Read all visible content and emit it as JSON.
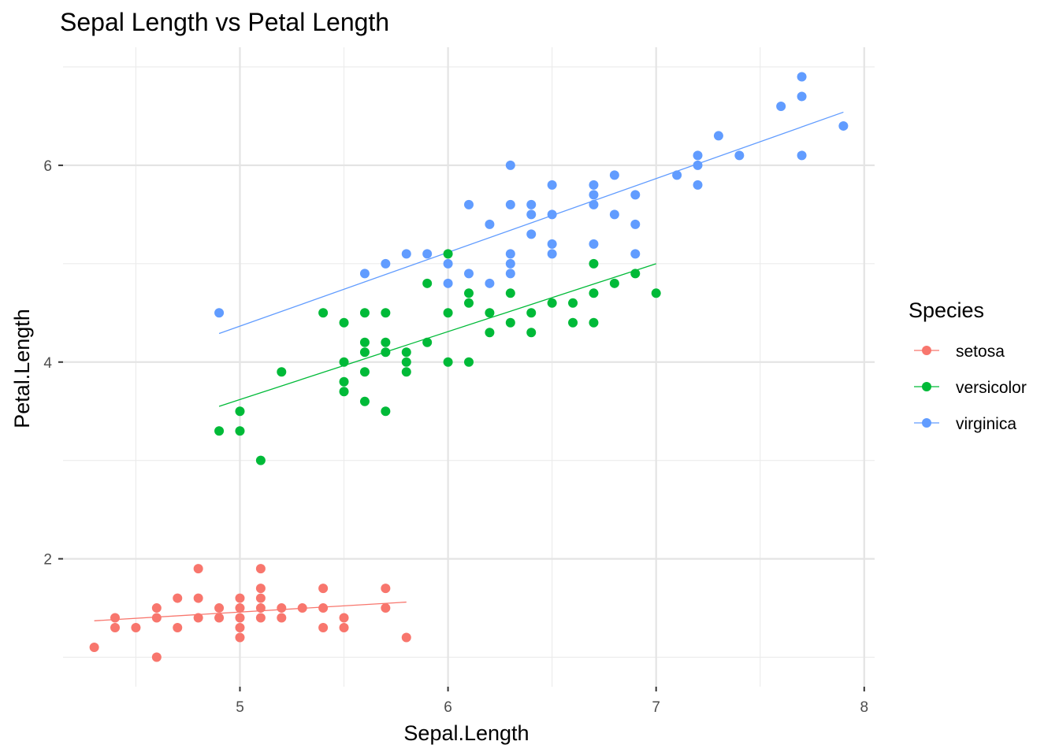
{
  "chart_data": {
    "type": "scatter",
    "title": "Sepal Length vs Petal Length",
    "xlabel": "Sepal.Length",
    "ylabel": "Petal.Length",
    "xlim": [
      4.15,
      8.05
    ],
    "ylim": [
      0.7,
      7.2
    ],
    "x_ticks": [
      5,
      6,
      7,
      8
    ],
    "x_minor": [
      4.5,
      5.5,
      6.5,
      7.5
    ],
    "y_ticks": [
      2,
      4,
      6
    ],
    "y_minor": [
      1,
      3,
      5,
      7
    ],
    "x_tick_labels": [
      "5",
      "6",
      "7",
      "8"
    ],
    "y_tick_labels": [
      "2",
      "4",
      "6"
    ],
    "grid": true,
    "legend": {
      "title": "Species",
      "position": "right"
    },
    "series": [
      {
        "name": "setosa",
        "color": "#F8766D",
        "fit": [
          [
            4.3,
            1.37
          ],
          [
            5.8,
            1.56
          ]
        ],
        "points": [
          [
            4.3,
            1.1
          ],
          [
            4.4,
            1.4
          ],
          [
            4.4,
            1.3
          ],
          [
            4.5,
            1.3
          ],
          [
            4.6,
            1.5
          ],
          [
            4.6,
            1.4
          ],
          [
            4.6,
            1.0
          ],
          [
            4.7,
            1.6
          ],
          [
            4.7,
            1.3
          ],
          [
            4.8,
            1.9
          ],
          [
            4.8,
            1.6
          ],
          [
            4.8,
            1.4
          ],
          [
            4.9,
            1.5
          ],
          [
            4.9,
            1.4
          ],
          [
            5.0,
            1.6
          ],
          [
            5.0,
            1.5
          ],
          [
            5.0,
            1.4
          ],
          [
            5.0,
            1.3
          ],
          [
            5.0,
            1.2
          ],
          [
            5.1,
            1.9
          ],
          [
            5.1,
            1.7
          ],
          [
            5.1,
            1.6
          ],
          [
            5.1,
            1.5
          ],
          [
            5.1,
            1.4
          ],
          [
            5.2,
            1.5
          ],
          [
            5.2,
            1.4
          ],
          [
            5.3,
            1.5
          ],
          [
            5.4,
            1.7
          ],
          [
            5.4,
            1.5
          ],
          [
            5.4,
            1.3
          ],
          [
            5.5,
            1.4
          ],
          [
            5.5,
            1.3
          ],
          [
            5.7,
            1.7
          ],
          [
            5.7,
            1.5
          ],
          [
            5.8,
            1.2
          ]
        ]
      },
      {
        "name": "versicolor",
        "color": "#00BA38",
        "fit": [
          [
            4.9,
            3.55
          ],
          [
            7.0,
            5.0
          ]
        ],
        "points": [
          [
            4.9,
            3.3
          ],
          [
            5.0,
            3.5
          ],
          [
            5.0,
            3.3
          ],
          [
            5.1,
            3.0
          ],
          [
            5.2,
            3.9
          ],
          [
            5.4,
            4.5
          ],
          [
            5.5,
            4.4
          ],
          [
            5.5,
            4.0
          ],
          [
            5.5,
            3.8
          ],
          [
            5.5,
            3.7
          ],
          [
            5.6,
            4.5
          ],
          [
            5.6,
            4.2
          ],
          [
            5.6,
            4.1
          ],
          [
            5.6,
            3.9
          ],
          [
            5.6,
            3.6
          ],
          [
            5.7,
            4.5
          ],
          [
            5.7,
            4.2
          ],
          [
            5.7,
            4.1
          ],
          [
            5.7,
            3.5
          ],
          [
            5.8,
            4.1
          ],
          [
            5.8,
            4.0
          ],
          [
            5.8,
            3.9
          ],
          [
            5.9,
            4.8
          ],
          [
            5.9,
            4.2
          ],
          [
            6.0,
            5.1
          ],
          [
            6.0,
            4.5
          ],
          [
            6.0,
            4.0
          ],
          [
            6.1,
            4.7
          ],
          [
            6.1,
            4.6
          ],
          [
            6.1,
            4.0
          ],
          [
            6.2,
            4.5
          ],
          [
            6.2,
            4.3
          ],
          [
            6.3,
            4.7
          ],
          [
            6.3,
            4.4
          ],
          [
            6.4,
            4.5
          ],
          [
            6.4,
            4.3
          ],
          [
            6.5,
            4.6
          ],
          [
            6.6,
            4.6
          ],
          [
            6.6,
            4.4
          ],
          [
            6.7,
            5.0
          ],
          [
            6.7,
            4.7
          ],
          [
            6.7,
            4.4
          ],
          [
            6.8,
            4.8
          ],
          [
            6.9,
            4.9
          ],
          [
            7.0,
            4.7
          ]
        ]
      },
      {
        "name": "virginica",
        "color": "#619CFF",
        "fit": [
          [
            4.9,
            4.29
          ],
          [
            7.9,
            6.54
          ]
        ],
        "points": [
          [
            4.9,
            4.5
          ],
          [
            5.6,
            4.9
          ],
          [
            5.7,
            5.0
          ],
          [
            5.8,
            5.1
          ],
          [
            5.9,
            5.1
          ],
          [
            6.0,
            5.0
          ],
          [
            6.0,
            4.8
          ],
          [
            6.1,
            5.6
          ],
          [
            6.1,
            4.9
          ],
          [
            6.2,
            5.4
          ],
          [
            6.2,
            4.8
          ],
          [
            6.3,
            6.0
          ],
          [
            6.3,
            5.6
          ],
          [
            6.3,
            5.1
          ],
          [
            6.3,
            5.0
          ],
          [
            6.3,
            4.9
          ],
          [
            6.4,
            5.6
          ],
          [
            6.4,
            5.5
          ],
          [
            6.4,
            5.3
          ],
          [
            6.5,
            5.8
          ],
          [
            6.5,
            5.5
          ],
          [
            6.5,
            5.2
          ],
          [
            6.5,
            5.1
          ],
          [
            6.7,
            5.8
          ],
          [
            6.7,
            5.7
          ],
          [
            6.7,
            5.6
          ],
          [
            6.7,
            5.2
          ],
          [
            6.8,
            5.9
          ],
          [
            6.8,
            5.5
          ],
          [
            6.9,
            5.7
          ],
          [
            6.9,
            5.4
          ],
          [
            6.9,
            5.1
          ],
          [
            7.1,
            5.9
          ],
          [
            7.2,
            6.1
          ],
          [
            7.2,
            6.0
          ],
          [
            7.2,
            5.8
          ],
          [
            7.3,
            6.3
          ],
          [
            7.4,
            6.1
          ],
          [
            7.6,
            6.6
          ],
          [
            7.7,
            6.9
          ],
          [
            7.7,
            6.7
          ],
          [
            7.7,
            6.1
          ],
          [
            7.9,
            6.4
          ]
        ]
      }
    ]
  }
}
